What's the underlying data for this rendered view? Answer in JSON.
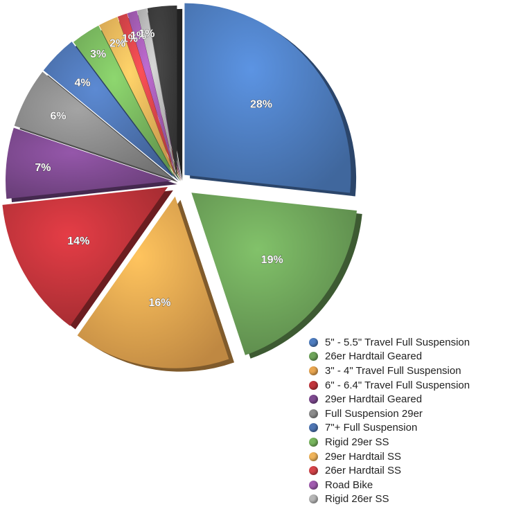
{
  "chart_data": {
    "type": "pie",
    "title": "",
    "legend_position": "bottom-right",
    "slices": [
      {
        "label": "5\" - 5.5\" Travel Full Suspension",
        "value": 28,
        "value_label": "28%",
        "color": "#4e7dc0"
      },
      {
        "label": "26er Hardtail Geared",
        "value": 19,
        "value_label": "19%",
        "color": "#6ea45a"
      },
      {
        "label": "3\" - 4\" Travel Full Suspension",
        "value": 16,
        "value_label": "16%",
        "color": "#e9a650"
      },
      {
        "label": "6\" - 6.4\" Travel Full Suspension",
        "value": 14,
        "value_label": "14%",
        "color": "#c2343b"
      },
      {
        "label": "29er Hardtail Geared",
        "value": 7,
        "value_label": "7%",
        "color": "#7e4a90"
      },
      {
        "label": "Full Suspension 29er",
        "value": 6,
        "value_label": "6%",
        "color": "#8b8b8b"
      },
      {
        "label": "7\"+ Full Suspension",
        "value": 4,
        "value_label": "4%",
        "color": "#4e75b3"
      },
      {
        "label": "Rigid 29er SS",
        "value": 3,
        "value_label": "3%",
        "color": "#78b65e"
      },
      {
        "label": "29er Hardtail SS",
        "value": 2,
        "value_label": "2%",
        "color": "#f0b45a"
      },
      {
        "label": "26er Hardtail SS",
        "value": 1,
        "value_label": "1%",
        "color": "#d54449"
      },
      {
        "label": "Road Bike",
        "value": 1,
        "value_label": "1%",
        "color": "#a15bb0"
      },
      {
        "label": "Rigid 26er SS",
        "value": 1,
        "value_label": "1%",
        "color": "#b6b6b6"
      },
      {
        "label": "",
        "value": 3,
        "value_label": "",
        "color": "#3c3c3c"
      }
    ]
  }
}
